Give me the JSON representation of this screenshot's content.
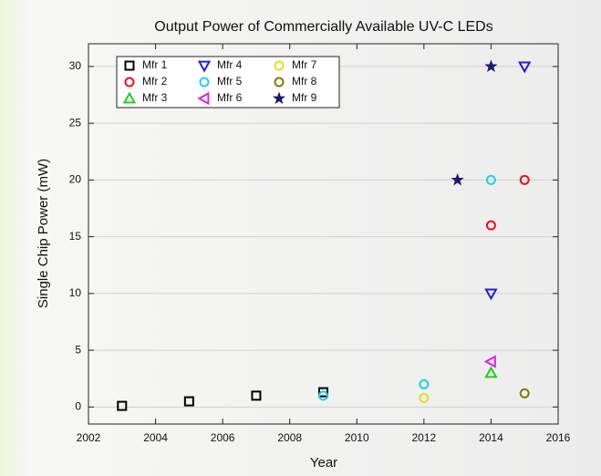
{
  "chart_data": {
    "type": "scatter",
    "title": "Output Power of Commercially Available UV-C LEDs",
    "xlabel": "Year",
    "ylabel": "Single Chip Power (mW)",
    "xlim": [
      2002,
      2016
    ],
    "xticks": [
      2002,
      2004,
      2006,
      2008,
      2010,
      2012,
      2014,
      2016
    ],
    "ylim": [
      -1.5,
      32
    ],
    "yticks": [
      0,
      5,
      10,
      15,
      20,
      25,
      30
    ],
    "grid": true,
    "legend": "upper left",
    "series": [
      {
        "name": "Mfr 1",
        "color": "#000000",
        "marker": "square",
        "x": [
          2003,
          2005,
          2007,
          2009
        ],
        "y": [
          0.1,
          0.5,
          1,
          1.3
        ]
      },
      {
        "name": "Mfr 2",
        "color": "#e8111a",
        "marker": "circle",
        "x": [
          2014,
          2015
        ],
        "y": [
          16,
          20
        ]
      },
      {
        "name": "Mfr 3",
        "color": "#22cc22",
        "marker": "triangle-up",
        "x": [
          2014
        ],
        "y": [
          3
        ]
      },
      {
        "name": "Mfr 4",
        "color": "#2020d0",
        "marker": "triangle-down",
        "x": [
          2014,
          2015
        ],
        "y": [
          10,
          30
        ]
      },
      {
        "name": "Mfr 5",
        "color": "#22ccee",
        "marker": "circle",
        "x": [
          2009,
          2012,
          2014
        ],
        "y": [
          1,
          2,
          20
        ]
      },
      {
        "name": "Mfr 6",
        "color": "#e020e0",
        "marker": "triangle-left",
        "x": [
          2014
        ],
        "y": [
          4
        ]
      },
      {
        "name": "Mfr 7",
        "color": "#e0e020",
        "marker": "circle",
        "x": [
          2012
        ],
        "y": [
          0.8
        ]
      },
      {
        "name": "Mfr 8",
        "color": "#7a7a10",
        "marker": "circle",
        "x": [
          2015
        ],
        "y": [
          1.2
        ]
      },
      {
        "name": "Mfr 9",
        "color": "#1a1a70",
        "marker": "star",
        "x": [
          2013,
          2014
        ],
        "y": [
          20,
          30
        ]
      }
    ]
  }
}
